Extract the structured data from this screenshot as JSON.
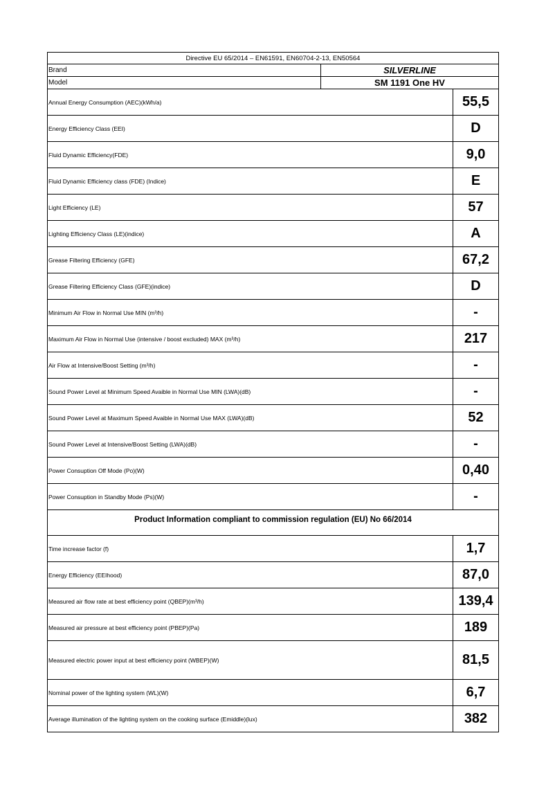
{
  "directive": "Directive EU 65/2014 – EN61591, EN60704-2-13, EN50564",
  "brand": {
    "label": "Brand",
    "value": "SILVERLINE"
  },
  "model": {
    "label": "Model",
    "value": "SM 1191 One HV"
  },
  "rows": [
    {
      "label": "Annual Energy Consumption (AEC)(kWh/a)",
      "value": "55,5"
    },
    {
      "label": "Energy Efficiency Class (EEI)",
      "value": "D"
    },
    {
      "label": "Fluid Dynamic Efficiency(FDE)",
      "value": "9,0"
    },
    {
      "label": "Fluid Dynamic Efficiency class (FDE) (Indice)",
      "value": "E"
    },
    {
      "label": "Light Efficiency (LE)",
      "value": "57"
    },
    {
      "label": "Lighting Efficiency Class (LE)(indice)",
      "value": "A"
    },
    {
      "label": "Grease Filtering Efficiency (GFE)",
      "value": "67,2"
    },
    {
      "label": "Grease Filtering Efficiency Class (GFE)(indice)",
      "value": "D"
    },
    {
      "label": "Minimum Air Flow in Normal Use MIN (m³/h)",
      "value": "-"
    },
    {
      "label": "Maximum Air Flow in Normal Use  (intensive / boost excluded) MAX (m³/h)",
      "value": "217"
    },
    {
      "label": "Air Flow at Intensive/Boost Setting (m³/h)",
      "value": "-"
    },
    {
      "label": "Sound Power Level at Minimum Speed Avaible in Normal Use MIN (LWA)(dB)",
      "value": "-"
    },
    {
      "label": "Sound Power Level at Maximum Speed Avaible in Normal Use MAX (LWA)(dB)",
      "value": "52"
    },
    {
      "label": "Sound Power Level at Intensive/Boost Setting (LWA)(dB)",
      "value": "-"
    },
    {
      "label": "Power Consuption Off Mode  (Po)(W)",
      "value": "0,40"
    },
    {
      "label": "Power Consuption in Standby Mode (Ps)(W)",
      "value": "-"
    }
  ],
  "section_title": "Product Information compliant to commission regulation (EU) No 66/2014",
  "rows2": [
    {
      "label": "Time increase factor (f)",
      "value": "1,7"
    },
    {
      "label": "Energy Efficiency (EEIhood)",
      "value": "87,0"
    },
    {
      "label": "Measured air flow rate at best efficiency point (QBEP)(m³/h)",
      "value": "139,4"
    },
    {
      "label": "Measured air pressure at best efficiency point (PBEP)(Pa)",
      "value": "189"
    },
    {
      "label": "Measured electric power input at best efficiency point (WBEP)(W)",
      "value": "81,5"
    },
    {
      "label": "Nominal power of the lighting system (WL)(W)",
      "value": "6,7"
    },
    {
      "label": "Average illumination of the lighting system on the cooking surface (Emiddle)(lux)",
      "value": "382"
    }
  ]
}
